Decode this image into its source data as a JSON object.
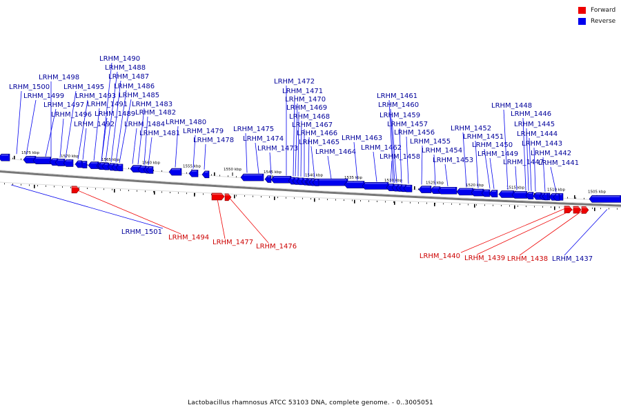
{
  "legend": {
    "forward": {
      "label": "Forward",
      "color": "#ee0000"
    },
    "reverse": {
      "label": "Reverse",
      "color": "#0000ee"
    }
  },
  "caption": "Lactobacillus rhamnosus ATCC 53103 DNA, complete genome. - 0..3005051",
  "ruler": {
    "ticks": [
      "1575 kbp",
      "1570 kbp",
      "1565 kbp",
      "1560 kbp",
      "1555 kbp",
      "1550 kbp",
      "1545 kbp",
      "1540 kbp",
      "1535 kbp",
      "1530 kbp",
      "1525 kbp",
      "1520 kbp",
      "1515 kbp",
      "1510 kbp",
      "1505 kbp"
    ]
  },
  "genes": [
    {
      "name": "LRHM_1500",
      "strand": "reverse"
    },
    {
      "name": "LRHM_1499",
      "strand": "reverse"
    },
    {
      "name": "LRHM_1498",
      "strand": "reverse"
    },
    {
      "name": "LRHM_1497",
      "strand": "reverse"
    },
    {
      "name": "LRHM_1496",
      "strand": "reverse"
    },
    {
      "name": "LRHM_1495",
      "strand": "reverse"
    },
    {
      "name": "LRHM_1493",
      "strand": "reverse"
    },
    {
      "name": "LRHM_1492",
      "strand": "reverse"
    },
    {
      "name": "LRHM_1491",
      "strand": "reverse"
    },
    {
      "name": "LRHM_1490",
      "strand": "reverse"
    },
    {
      "name": "LRHM_1489",
      "strand": "reverse"
    },
    {
      "name": "LRHM_1488",
      "strand": "reverse"
    },
    {
      "name": "LRHM_1487",
      "strand": "reverse"
    },
    {
      "name": "LRHM_1486",
      "strand": "reverse"
    },
    {
      "name": "LRHM_1485",
      "strand": "reverse"
    },
    {
      "name": "LRHM_1484",
      "strand": "reverse"
    },
    {
      "name": "LRHM_1483",
      "strand": "reverse"
    },
    {
      "name": "LRHM_1482",
      "strand": "reverse"
    },
    {
      "name": "LRHM_1481",
      "strand": "reverse"
    },
    {
      "name": "LRHM_1480",
      "strand": "reverse"
    },
    {
      "name": "LRHM_1479",
      "strand": "reverse"
    },
    {
      "name": "LRHM_1478",
      "strand": "reverse"
    },
    {
      "name": "LRHM_1475",
      "strand": "reverse"
    },
    {
      "name": "LRHM_1474",
      "strand": "reverse"
    },
    {
      "name": "LRHM_1473",
      "strand": "reverse"
    },
    {
      "name": "LRHM_1472",
      "strand": "reverse"
    },
    {
      "name": "LRHM_1471",
      "strand": "reverse"
    },
    {
      "name": "LRHM_1470",
      "strand": "reverse"
    },
    {
      "name": "LRHM_1469",
      "strand": "reverse"
    },
    {
      "name": "LRHM_1468",
      "strand": "reverse"
    },
    {
      "name": "LRHM_1467",
      "strand": "reverse"
    },
    {
      "name": "LRHM_1466",
      "strand": "reverse"
    },
    {
      "name": "LRHM_1465",
      "strand": "reverse"
    },
    {
      "name": "LRHM_1464",
      "strand": "reverse"
    },
    {
      "name": "LRHM_1463",
      "strand": "reverse"
    },
    {
      "name": "LRHM_1462",
      "strand": "reverse"
    },
    {
      "name": "LRHM_1461",
      "strand": "reverse"
    },
    {
      "name": "LRHM_1460",
      "strand": "reverse"
    },
    {
      "name": "LRHM_1459",
      "strand": "reverse"
    },
    {
      "name": "LRHM_1458",
      "strand": "reverse"
    },
    {
      "name": "LRHM_1457",
      "strand": "reverse"
    },
    {
      "name": "LRHM_1456",
      "strand": "reverse"
    },
    {
      "name": "LRHM_1455",
      "strand": "reverse"
    },
    {
      "name": "LRHM_1454",
      "strand": "reverse"
    },
    {
      "name": "LRHM_1453",
      "strand": "reverse"
    },
    {
      "name": "LRHM_1452",
      "strand": "reverse"
    },
    {
      "name": "LRHM_1451",
      "strand": "reverse"
    },
    {
      "name": "LRHM_1450",
      "strand": "reverse"
    },
    {
      "name": "LRHM_1449",
      "strand": "reverse"
    },
    {
      "name": "LRHM_1448",
      "strand": "reverse"
    },
    {
      "name": "LRHM_1447",
      "strand": "reverse"
    },
    {
      "name": "LRHM_1446",
      "strand": "reverse"
    },
    {
      "name": "LRHM_1445",
      "strand": "reverse"
    },
    {
      "name": "LRHM_1444",
      "strand": "reverse"
    },
    {
      "name": "LRHM_1443",
      "strand": "reverse"
    },
    {
      "name": "LRHM_1442",
      "strand": "reverse"
    },
    {
      "name": "LRHM_1441",
      "strand": "reverse"
    },
    {
      "name": "LRHM_1501",
      "strand": "reverse"
    },
    {
      "name": "LRHM_1494",
      "strand": "forward"
    },
    {
      "name": "LRHM_1477",
      "strand": "forward"
    },
    {
      "name": "LRHM_1476",
      "strand": "forward"
    },
    {
      "name": "LRHM_1440",
      "strand": "forward"
    },
    {
      "name": "LRHM_1439",
      "strand": "forward"
    },
    {
      "name": "LRHM_1438",
      "strand": "forward"
    },
    {
      "name": "LRHM_1437",
      "strand": "reverse"
    }
  ]
}
